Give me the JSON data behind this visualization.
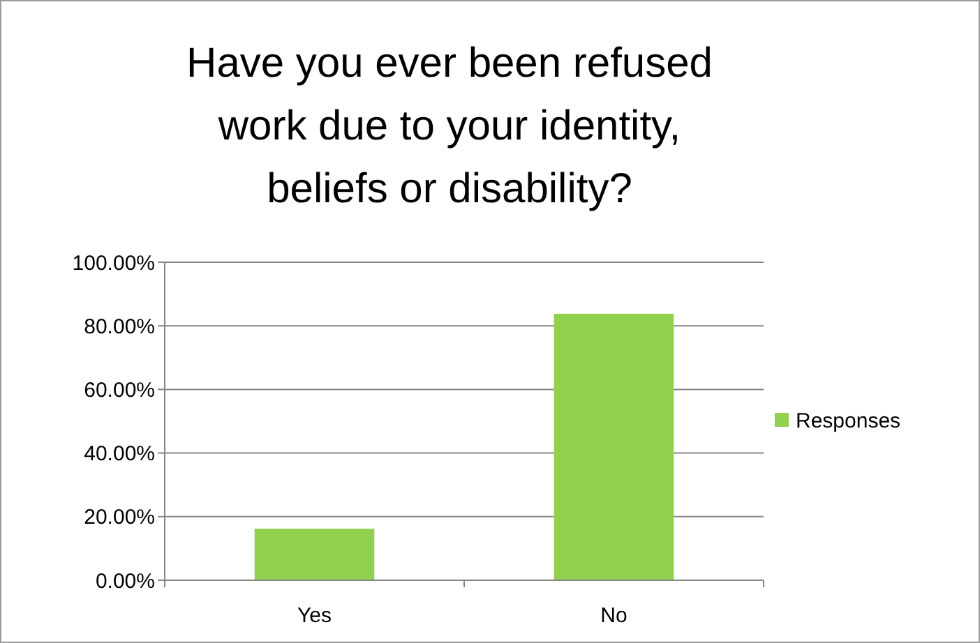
{
  "chart_data": {
    "type": "bar",
    "title": "Have you ever been refused work due to your identity, beliefs or disability?",
    "categories": [
      "Yes",
      "No"
    ],
    "series": [
      {
        "name": "Responses",
        "color": "#92d050",
        "values": [
          16.2,
          83.8
        ]
      }
    ],
    "ylim": [
      0,
      100
    ],
    "yticks": [
      {
        "value": 0,
        "label": "0.00%"
      },
      {
        "value": 20,
        "label": "20.00%"
      },
      {
        "value": 40,
        "label": "40.00%"
      },
      {
        "value": 60,
        "label": "60.00%"
      },
      {
        "value": 80,
        "label": "80.00%"
      },
      {
        "value": 100,
        "label": "100.00%"
      }
    ],
    "grid": "y",
    "legend": "right"
  }
}
